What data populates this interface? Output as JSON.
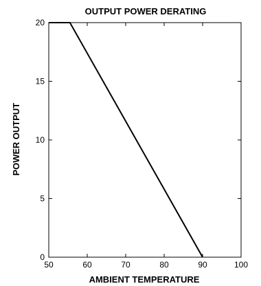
{
  "chart_data": {
    "type": "line",
    "title": "OUTPUT POWER DERATING",
    "xlabel": "AMBIENT TEMPERATURE",
    "ylabel": "POWER OUTPUT",
    "xlim": [
      50,
      100
    ],
    "ylim": [
      0,
      20
    ],
    "x_ticks": [
      50,
      60,
      70,
      80,
      90,
      100
    ],
    "y_ticks": [
      0,
      5,
      10,
      15,
      20
    ],
    "x_tick_labels": [
      "50",
      "60",
      "70",
      "80",
      "90",
      "100"
    ],
    "y_tick_labels": [
      "0",
      "5",
      "10",
      "15",
      "20"
    ],
    "grid": false,
    "series": [
      {
        "x": [
          50,
          55.5,
          90
        ],
        "y": [
          20,
          20,
          0
        ],
        "color": "#000000"
      }
    ]
  }
}
